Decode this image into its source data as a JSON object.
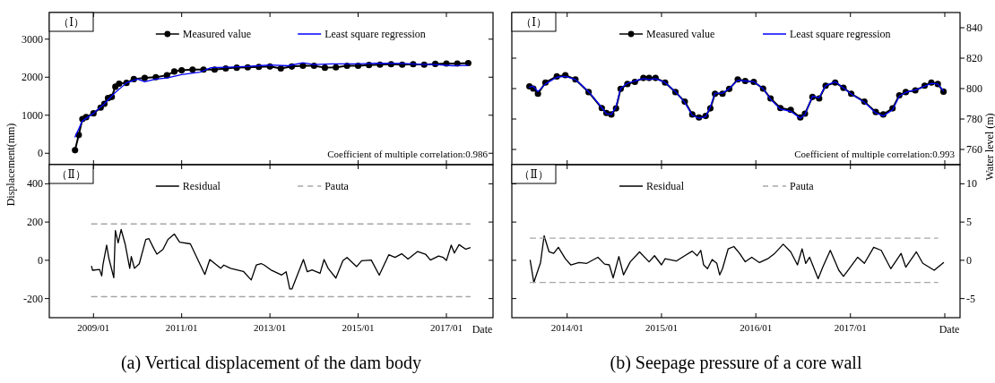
{
  "chart_data": [
    {
      "type": "line",
      "ylabel": "Displacement(mm)",
      "xlim": [
        "2008-01",
        "2018-01-22"
      ],
      "ylim": [
        -300,
        3700
      ],
      "yticks": [
        0,
        1000,
        2000,
        3000
      ],
      "tick_labels": "y",
      "legend": "top",
      "annotations": [
        "（Ⅰ）",
        "Coefficient of multiple correlation:0.986"
      ],
      "series": [
        {
          "name": "Measured value",
          "color": "#000000",
          "marker": "circle",
          "x": [
            "2008-08",
            "2008-09",
            "2008-10",
            "2008-11",
            "2009-01",
            "2009-03",
            "2009-04",
            "2009-05",
            "2009-06",
            "2009-07",
            "2009-08",
            "2009-10",
            "2009-12",
            "2010-03",
            "2010-06",
            "2010-09",
            "2010-11",
            "2011-01",
            "2011-04",
            "2011-07",
            "2011-10",
            "2012-01",
            "2012-04",
            "2012-07",
            "2012-10",
            "2013-01",
            "2013-04",
            "2013-07",
            "2013-10",
            "2014-01",
            "2014-04",
            "2014-07",
            "2014-10",
            "2015-01",
            "2015-04",
            "2015-07",
            "2015-10",
            "2016-01",
            "2016-04",
            "2016-07",
            "2016-10",
            "2017-01",
            "2017-04",
            "2017-07"
          ],
          "values": [
            80,
            480,
            900,
            950,
            1050,
            1200,
            1300,
            1450,
            1480,
            1750,
            1830,
            1850,
            1950,
            1980,
            2000,
            2050,
            2150,
            2180,
            2200,
            2200,
            2200,
            2230,
            2250,
            2260,
            2270,
            2280,
            2230,
            2280,
            2300,
            2300,
            2250,
            2260,
            2300,
            2300,
            2320,
            2330,
            2340,
            2330,
            2340,
            2330,
            2350,
            2360,
            2360,
            2370
          ]
        },
        {
          "name": "Least square regression",
          "color": "#0000ff",
          "marker": "none",
          "x": [
            "2008-08",
            "2008-10",
            "2009-01",
            "2009-04",
            "2009-07",
            "2009-10",
            "2010-01",
            "2010-03",
            "2010-06",
            "2010-09",
            "2011-01",
            "2011-06",
            "2011-09",
            "2012-01",
            "2012-06",
            "2012-10",
            "2013-01",
            "2013-06",
            "2013-10",
            "2014-01",
            "2014-06",
            "2015-01",
            "2015-06",
            "2016-01",
            "2016-06",
            "2016-10",
            "2017-03",
            "2017-07"
          ],
          "values": [
            430,
            850,
            1050,
            1300,
            1600,
            1850,
            1950,
            1880,
            1950,
            1980,
            2070,
            2130,
            2250,
            2260,
            2280,
            2300,
            2320,
            2300,
            2380,
            2330,
            2350,
            2350,
            2370,
            2360,
            2340,
            2330,
            2300,
            2310
          ]
        }
      ]
    },
    {
      "type": "line",
      "y2label": "Water level (m)",
      "xlim": [
        "2013-06",
        "2018-03"
      ],
      "y2lim": [
        750,
        850
      ],
      "y2ticks": [
        760,
        780,
        800,
        820,
        840
      ],
      "tick_labels": "y",
      "legend": "top",
      "annotations": [
        "（Ⅰ）",
        "Coefficient of multiple correlation:0.993"
      ],
      "series": [
        {
          "name": "Measured value",
          "color": "#000000",
          "marker": "circle",
          "axis": "y2",
          "x": [
            "2013-08-08",
            "2013-08-23",
            "2013-09-10",
            "2013-10-09",
            "2013-11-22",
            "2013-12-25",
            "2014-02-02",
            "2014-03-25",
            "2014-05-15",
            "2014-06-02",
            "2014-06-21",
            "2014-07-09",
            "2014-07-27",
            "2014-08-22",
            "2014-09-20",
            "2014-10-23",
            "2014-11-14",
            "2014-12-09",
            "2015-01-15",
            "2015-02-24",
            "2015-04-01",
            "2015-04-30",
            "2015-05-26",
            "2015-06-21",
            "2015-07-09",
            "2015-07-27",
            "2015-08-25",
            "2015-09-20",
            "2015-10-23",
            "2015-11-21",
            "2015-12-24",
            "2016-01-29",
            "2016-02-27",
            "2016-04-05",
            "2016-05-15",
            "2016-06-21",
            "2016-07-09",
            "2016-08-07",
            "2016-09-02",
            "2016-09-27",
            "2016-11-03",
            "2016-12-05",
            "2017-01-04",
            "2017-02-24",
            "2017-04-09",
            "2017-05-08",
            "2017-06-13",
            "2017-07-09",
            "2017-08-03",
            "2017-09-09",
            "2017-10-15",
            "2017-11-10",
            "2017-12-05",
            "2017-12-27"
          ],
          "values": [
            801.5,
            800,
            796.6,
            804,
            808,
            808.8,
            806,
            797.7,
            787.2,
            784,
            783,
            787,
            799.8,
            803,
            804.4,
            807,
            807,
            807,
            804,
            797.7,
            791.4,
            783,
            781,
            782,
            787,
            796.6,
            796.6,
            799.8,
            806,
            805,
            804.4,
            800,
            793.5,
            787.2,
            786,
            781,
            783.5,
            794.5,
            793.5,
            801.9,
            804,
            800.5,
            796.6,
            791.4,
            784.6,
            783,
            787,
            795.6,
            797.7,
            798.8,
            801.9,
            804,
            803,
            798
          ]
        },
        {
          "name": "Least square regression",
          "color": "#0000ff",
          "marker": "none",
          "axis": "y2",
          "x": [
            "2013-08-08",
            "2013-08-23",
            "2013-09-10",
            "2013-10-09",
            "2013-11-22",
            "2013-12-25",
            "2014-02-02",
            "2014-03-25",
            "2014-05-15",
            "2014-06-02",
            "2014-06-21",
            "2014-07-09",
            "2014-07-27",
            "2014-08-22",
            "2014-09-20",
            "2014-10-23",
            "2014-11-14",
            "2014-12-09",
            "2015-01-15",
            "2015-02-24",
            "2015-04-01",
            "2015-04-30",
            "2015-05-26",
            "2015-06-21",
            "2015-07-09",
            "2015-07-27",
            "2015-08-25",
            "2015-09-20",
            "2015-10-23",
            "2015-11-21",
            "2015-12-24",
            "2016-01-29",
            "2016-02-27",
            "2016-04-05",
            "2016-05-15",
            "2016-06-21",
            "2016-07-09",
            "2016-08-07",
            "2016-09-02",
            "2016-09-27",
            "2016-11-03",
            "2016-12-05",
            "2017-01-04",
            "2017-02-24",
            "2017-04-09",
            "2017-05-08",
            "2017-06-13",
            "2017-07-09",
            "2017-08-03",
            "2017-09-09",
            "2017-10-15",
            "2017-11-10",
            "2017-12-05",
            "2017-12-27"
          ],
          "values": [
            801,
            801.5,
            798,
            803,
            807.5,
            808,
            806,
            798,
            787.5,
            783.5,
            783,
            788,
            800,
            803.5,
            805,
            806.5,
            806,
            806.5,
            804,
            798,
            791,
            782.5,
            780.5,
            781.5,
            788,
            797,
            797,
            800,
            805.5,
            805,
            804.5,
            800,
            793,
            786.5,
            785,
            780.5,
            783,
            795,
            794,
            802,
            804.5,
            800.5,
            796.5,
            791,
            784,
            782,
            786,
            795,
            797.5,
            799,
            801.5,
            803.5,
            803,
            798.5
          ]
        }
      ]
    },
    {
      "type": "line",
      "xlabel": "Date",
      "xlim": [
        "2008-01",
        "2018-01-22"
      ],
      "xticks": [
        {
          "value": "2009-01",
          "label": "2009/01"
        },
        {
          "value": "2011-01",
          "label": "2011/01"
        },
        {
          "value": "2013-01",
          "label": "2013/01"
        },
        {
          "value": "2015-01",
          "label": "2015/01"
        },
        {
          "value": "2017-01",
          "label": "2017/01"
        }
      ],
      "ylim": [
        -300,
        500
      ],
      "yticks": [
        -200,
        0,
        200,
        400
      ],
      "legend": "top",
      "annotations": [
        "（Ⅱ）",
        "(a) Vertical displacement of the dam body"
      ],
      "series": [
        {
          "name": "Residual",
          "color": "#000000",
          "x": [
            "2008-12-16",
            "2008-12-24",
            "2009-02-20",
            "2009-03-10",
            "2009-03-20",
            "2009-04-20",
            "2009-05-08",
            "2009-06-18",
            "2009-07-01",
            "2009-07-24",
            "2009-08-18",
            "2009-09-20",
            "2009-10-28",
            "2009-11-10",
            "2009-12-06",
            "2010-01-15",
            "2010-03-10",
            "2010-04-05",
            "2010-05-15",
            "2010-06-10",
            "2010-07-30",
            "2010-09-10",
            "2010-11-02",
            "2010-12-15",
            "2011-03-14",
            "2011-07-12",
            "2011-08-22",
            "2011-11-20",
            "2011-12-16",
            "2012-02-10",
            "2012-05-26",
            "2012-07-30",
            "2012-09-10",
            "2012-10-20",
            "2012-11-15",
            "2013-01-08",
            "2013-04-08",
            "2013-05-15",
            "2013-06-14",
            "2013-07-02",
            "2013-10-05",
            "2013-11-06",
            "2013-12-16",
            "2014-02-20",
            "2014-03-25",
            "2014-04-28",
            "2014-07-01",
            "2014-08-28",
            "2014-10-01",
            "2014-12-20",
            "2015-01-30",
            "2015-04-20",
            "2015-06-25",
            "2015-09-12",
            "2015-11-02",
            "2015-12-28",
            "2016-02-18",
            "2016-05-08",
            "2016-07-12",
            "2016-08-22",
            "2016-10-28",
            "2016-12-06",
            "2017-01-01",
            "2017-02-10",
            "2017-03-08",
            "2017-04-16",
            "2017-06-10",
            "2017-07-16"
          ],
          "values": [
            -32,
            -52,
            -48,
            -82,
            -25,
            79,
            11,
            -91,
            156,
            91,
            161,
            85,
            -42,
            20,
            -42,
            -18,
            109,
            113,
            62,
            32,
            57,
            109,
            137,
            95,
            86,
            -74,
            4,
            -42,
            -25,
            -42,
            -58,
            -103,
            -25,
            -17,
            -25,
            -50,
            -77,
            -60,
            -150,
            -150,
            4,
            -60,
            -50,
            -68,
            4,
            -42,
            -93,
            -2,
            15,
            -33,
            -2,
            1,
            -78,
            29,
            15,
            34,
            6,
            46,
            32,
            1,
            22,
            15,
            -1,
            79,
            38,
            82,
            58,
            66
          ]
        },
        {
          "name": "Pauta",
          "color": "#a6a6a6",
          "line_style": "dashed",
          "x": [
            "2008-12-16",
            "2017-07-16"
          ],
          "values": [
            190,
            190
          ]
        },
        {
          "color": "#a6a6a6",
          "line_style": "dashed",
          "x": [
            "2008-12-16",
            "2017-07-16"
          ],
          "values": [
            -190,
            -190
          ]
        }
      ]
    },
    {
      "type": "line",
      "xlabel": "Date",
      "xlim": [
        "2013-06",
        "2018-03"
      ],
      "xticks": [
        {
          "value": "2014-01",
          "label": "2014/01"
        },
        {
          "value": "2015-01",
          "label": "2015/01"
        },
        {
          "value": "2016-01",
          "label": "2016/01"
        },
        {
          "value": "2017-01",
          "label": "2017/01"
        },
        {
          "value": "2018-01",
          "label": null
        }
      ],
      "y2lim": [
        -7.5,
        12.5
      ],
      "y2ticks": [
        -5,
        0,
        5,
        10
      ],
      "legend": "top",
      "annotations": [
        "（Ⅱ）",
        "(b) Seepage pressure of a core wall"
      ],
      "series": [
        {
          "name": "Residual",
          "color": "#000000",
          "axis": "y2",
          "x": [
            "2013-08-11",
            "2013-08-25",
            "2013-09-10",
            "2013-09-20",
            "2013-10-04",
            "2013-10-23",
            "2013-11-10",
            "2013-11-28",
            "2013-12-25",
            "2014-01-15",
            "2014-02-16",
            "2014-03-18",
            "2014-04-30",
            "2014-05-26",
            "2014-06-13",
            "2014-06-28",
            "2014-07-20",
            "2014-08-07",
            "2014-09-02",
            "2014-10-08",
            "2014-11-14",
            "2014-12-05",
            "2015-01-01",
            "2015-01-15",
            "2015-02-27",
            "2015-04-01",
            "2015-04-30",
            "2015-05-19",
            "2015-06-02",
            "2015-06-13",
            "2015-06-28",
            "2015-07-16",
            "2015-08-03",
            "2015-08-14",
            "2015-08-25",
            "2015-09-16",
            "2015-10-08",
            "2015-10-30",
            "2015-11-21",
            "2015-12-16",
            "2016-01-15",
            "2016-02-16",
            "2016-03-14",
            "2016-04-16",
            "2016-05-15",
            "2016-06-10",
            "2016-06-28",
            "2016-07-12",
            "2016-07-27",
            "2016-08-29",
            "2016-09-16",
            "2016-10-15",
            "2016-11-17",
            "2016-12-05",
            "2016-12-27",
            "2017-01-29",
            "2017-02-24",
            "2017-04-01",
            "2017-04-30",
            "2017-06-06",
            "2017-07-16",
            "2017-08-03",
            "2017-09-13",
            "2017-10-08",
            "2017-11-21",
            "2017-12-27"
          ],
          "values": [
            0,
            -2.9,
            -1.3,
            -0.3,
            3.2,
            1.1,
            0.9,
            1.7,
            0.2,
            -0.6,
            -0.3,
            -0.4,
            0.4,
            -0.5,
            -0.6,
            -2.3,
            0.5,
            -1.9,
            -0.2,
            1.1,
            -0.2,
            0.6,
            -0.6,
            0.2,
            -0.1,
            0.6,
            1.2,
            0.6,
            1.3,
            -0.6,
            -1.1,
            0.1,
            -0.4,
            -1.9,
            -1.1,
            1.5,
            1.8,
            0.9,
            -0.2,
            0.4,
            -0.3,
            0.2,
            0.9,
            2.1,
            1.1,
            -0.6,
            1.5,
            -0.4,
            0.4,
            -2.4,
            -0.9,
            1.3,
            -1.3,
            -2.1,
            -1.1,
            0.4,
            -0.4,
            1.7,
            1.3,
            -1.1,
            0.9,
            -0.9,
            1.1,
            -0.4,
            -1.3,
            -0.3
          ]
        },
        {
          "name": "Pauta",
          "color": "#a6a6a6",
          "line_style": "dashed",
          "axis": "y2",
          "x": [
            "2013-08-11",
            "2017-12-05"
          ],
          "values": [
            2.9,
            2.9
          ]
        },
        {
          "color": "#a6a6a6",
          "line_style": "dashed",
          "axis": "y2",
          "x": [
            "2013-08-11",
            "2017-12-05"
          ],
          "values": [
            -2.9,
            -2.9
          ]
        }
      ]
    }
  ]
}
